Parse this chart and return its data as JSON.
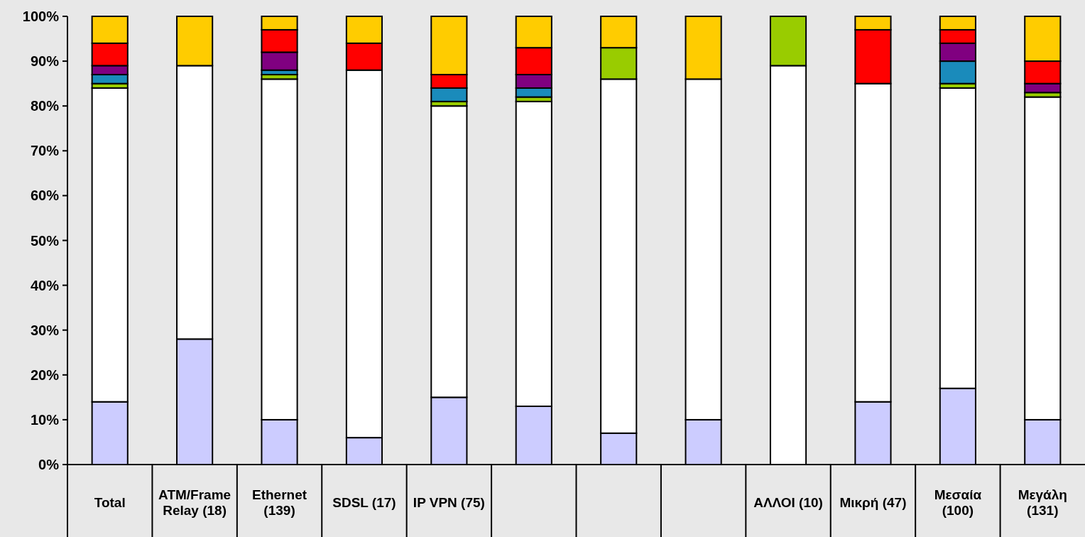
{
  "chart_data": {
    "type": "bar",
    "stacked": true,
    "categories": [
      "Total",
      "ATM/Frame Relay (18)",
      "Ethernet (139)",
      "SDSL (17)",
      "IP VPN (75)",
      null,
      null,
      null,
      "ΑΛΛΟΙ (10)",
      "Μικρή (47)",
      "Μεσαία (100)",
      "Μεγάλη (131)"
    ],
    "series": [
      {
        "color": "#ccccff",
        "values": [
          14,
          28,
          10,
          6,
          15,
          13,
          7,
          10,
          0,
          14,
          17,
          10
        ]
      },
      {
        "color": "#ffffff",
        "values": [
          70,
          61,
          76,
          82,
          65,
          68,
          79,
          76,
          89,
          71,
          67,
          72
        ]
      },
      {
        "color": "#99cc00",
        "values": [
          1,
          0,
          1,
          0,
          1,
          1,
          7,
          0,
          11,
          0,
          1,
          1
        ]
      },
      {
        "color": "#1a8bbb",
        "values": [
          2,
          0,
          1,
          0,
          3,
          2,
          0,
          0,
          0,
          0,
          5,
          0
        ]
      },
      {
        "color": "#800080",
        "values": [
          2,
          0,
          4,
          0,
          0,
          3,
          0,
          0,
          0,
          0,
          4,
          2
        ]
      },
      {
        "color": "#ff0000",
        "values": [
          5,
          0,
          5,
          6,
          3,
          6,
          0,
          0,
          0,
          12,
          3,
          5
        ]
      },
      {
        "color": "#ffcc00",
        "values": [
          6,
          11,
          3,
          6,
          13,
          7,
          7,
          14,
          0,
          3,
          3,
          10
        ]
      }
    ],
    "ylim": [
      0,
      100
    ],
    "yticks": [
      {
        "value": 0,
        "label": "0%"
      },
      {
        "value": 10,
        "label": "10%"
      },
      {
        "value": 20,
        "label": "20%"
      },
      {
        "value": 30,
        "label": "30%"
      },
      {
        "value": 40,
        "label": "40%"
      },
      {
        "value": 50,
        "label": "50%"
      },
      {
        "value": 60,
        "label": "60%"
      },
      {
        "value": 70,
        "label": "70%"
      },
      {
        "value": 80,
        "label": "80%"
      },
      {
        "value": 90,
        "label": "90%"
      },
      {
        "value": 100,
        "label": "100%"
      }
    ],
    "grid": false
  }
}
